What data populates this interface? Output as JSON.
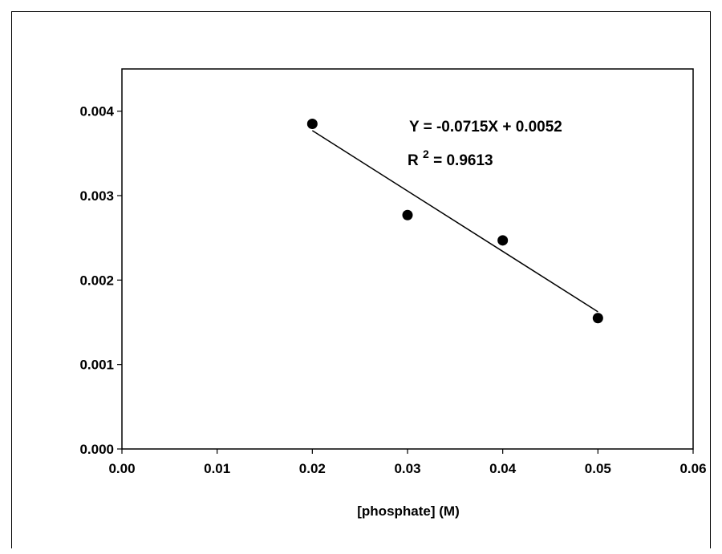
{
  "chart_data": {
    "type": "scatter",
    "title": "",
    "xlabel": "[phosphate] (M)",
    "ylabel": "",
    "xlim": [
      0,
      0.06
    ],
    "ylim": [
      0,
      0.0045
    ],
    "xticks": [
      "0.00",
      "0.01",
      "0.02",
      "0.03",
      "0.04",
      "0.05",
      "0.06"
    ],
    "xtick_values": [
      0,
      0.01,
      0.02,
      0.03,
      0.04,
      0.05,
      0.06
    ],
    "yticks": [
      "0.000",
      "0.001",
      "0.002",
      "0.003",
      "0.004"
    ],
    "ytick_values": [
      0,
      0.001,
      0.002,
      0.003,
      0.004
    ],
    "series": [
      {
        "x": [
          0.02,
          0.03,
          0.04,
          0.05
        ],
        "y": [
          0.00385,
          0.00277,
          0.00247,
          0.00155
        ]
      }
    ],
    "trendline": {
      "slope": -0.0715,
      "intercept": 0.0052,
      "x_range": [
        0.02,
        0.05
      ]
    },
    "annotations": {
      "equation": "Y = -0.0715X + 0.0052",
      "r2_prefix": "R",
      "r2_exponent": "2",
      "r2_value": " = 0.9613"
    },
    "grid": false,
    "legend": "none"
  }
}
